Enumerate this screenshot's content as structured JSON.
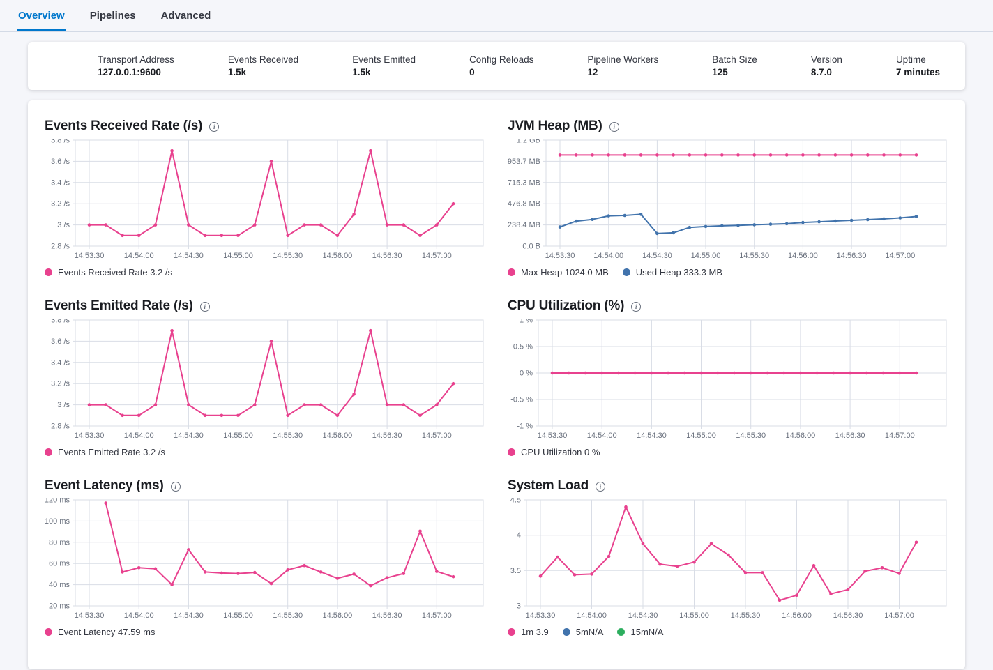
{
  "tabs": {
    "items": [
      {
        "label": "Overview",
        "active": true
      },
      {
        "label": "Pipelines",
        "active": false
      },
      {
        "label": "Advanced",
        "active": false
      }
    ]
  },
  "summary": {
    "items": [
      {
        "label": "Transport Address",
        "value": "127.0.0.1:9600"
      },
      {
        "label": "Events Received",
        "value": "1.5k"
      },
      {
        "label": "Events Emitted",
        "value": "1.5k"
      },
      {
        "label": "Config Reloads",
        "value": "0"
      },
      {
        "label": "Pipeline Workers",
        "value": "12"
      },
      {
        "label": "Batch Size",
        "value": "125"
      },
      {
        "label": "Version",
        "value": "8.7.0"
      },
      {
        "label": "Uptime",
        "value": "7 minutes"
      }
    ]
  },
  "colors": {
    "pink": "#e8418e",
    "blue": "#4173ac",
    "green": "#2cae5e",
    "accent_blue": "#0077cc",
    "gridline": "#d9dde6",
    "axis_text": "#69707d"
  },
  "icons": {
    "info": "i"
  },
  "chart_data": [
    {
      "type": "line",
      "title": "Events Received Rate (/s)",
      "x": [
        "14:53:30",
        "14:53:40",
        "14:53:50",
        "14:54:00",
        "14:54:10",
        "14:54:20",
        "14:54:30",
        "14:54:40",
        "14:54:50",
        "14:55:00",
        "14:55:10",
        "14:55:20",
        "14:55:30",
        "14:55:40",
        "14:55:50",
        "14:56:00",
        "14:56:10",
        "14:56:20",
        "14:56:30",
        "14:56:40",
        "14:56:50",
        "14:57:00",
        "14:57:10"
      ],
      "xticks": [
        "14:53:30",
        "14:54:00",
        "14:54:30",
        "14:55:00",
        "14:55:30",
        "14:56:00",
        "14:56:30",
        "14:57:00"
      ],
      "ylim": [
        2.8,
        3.8
      ],
      "yticks": [
        {
          "v": 2.8,
          "label": "2.8 /s"
        },
        {
          "v": 3.0,
          "label": "3 /s"
        },
        {
          "v": 3.2,
          "label": "3.2 /s"
        },
        {
          "v": 3.4,
          "label": "3.4 /s"
        },
        {
          "v": 3.6,
          "label": "3.6 /s"
        },
        {
          "v": 3.8,
          "label": "3.8 /s"
        }
      ],
      "grid": true,
      "legend_position": "bottom",
      "series": [
        {
          "name": "Events Received Rate",
          "color": "#e8418e",
          "values": [
            3.0,
            3.0,
            2.9,
            2.9,
            3.0,
            3.7,
            3.0,
            2.9,
            2.9,
            2.9,
            3.0,
            3.6,
            2.9,
            3.0,
            3.0,
            2.9,
            3.1,
            3.7,
            3.0,
            3.0,
            2.9,
            3.0,
            3.2
          ]
        }
      ],
      "legend": [
        {
          "label": "Events Received Rate 3.2 /s",
          "color": "#e8418e"
        }
      ]
    },
    {
      "type": "line",
      "title": "JVM Heap (MB)",
      "x": [
        "14:53:30",
        "14:53:40",
        "14:53:50",
        "14:54:00",
        "14:54:10",
        "14:54:20",
        "14:54:30",
        "14:54:40",
        "14:54:50",
        "14:55:00",
        "14:55:10",
        "14:55:20",
        "14:55:30",
        "14:55:40",
        "14:55:50",
        "14:56:00",
        "14:56:10",
        "14:56:20",
        "14:56:30",
        "14:56:40",
        "14:56:50",
        "14:57:00",
        "14:57:10"
      ],
      "xticks": [
        "14:53:30",
        "14:54:00",
        "14:54:30",
        "14:55:00",
        "14:55:30",
        "14:56:00",
        "14:56:30",
        "14:57:00"
      ],
      "ylim": [
        0,
        1192.1
      ],
      "yticks": [
        {
          "v": 0,
          "label": "0.0 B"
        },
        {
          "v": 238.4,
          "label": "238.4 MB"
        },
        {
          "v": 476.8,
          "label": "476.8 MB"
        },
        {
          "v": 715.3,
          "label": "715.3 MB"
        },
        {
          "v": 953.7,
          "label": "953.7 MB"
        },
        {
          "v": 1192.1,
          "label": "1.2 GB"
        }
      ],
      "grid": true,
      "legend_position": "bottom",
      "series": [
        {
          "name": "Max Heap",
          "color": "#e8418e",
          "values": [
            1024,
            1024,
            1024,
            1024,
            1024,
            1024,
            1024,
            1024,
            1024,
            1024,
            1024,
            1024,
            1024,
            1024,
            1024,
            1024,
            1024,
            1024,
            1024,
            1024,
            1024,
            1024,
            1024
          ]
        },
        {
          "name": "Used Heap",
          "color": "#4173ac",
          "values": [
            215,
            281,
            300,
            340,
            345,
            358,
            142,
            150,
            210,
            220,
            228,
            234,
            240,
            246,
            252,
            266,
            274,
            282,
            290,
            298,
            307,
            318,
            333
          ]
        }
      ],
      "legend": [
        {
          "label": "Max Heap 1024.0 MB",
          "color": "#e8418e"
        },
        {
          "label": "Used Heap 333.3 MB",
          "color": "#4173ac"
        }
      ]
    },
    {
      "type": "line",
      "title": "Events Emitted Rate (/s)",
      "x": [
        "14:53:30",
        "14:53:40",
        "14:53:50",
        "14:54:00",
        "14:54:10",
        "14:54:20",
        "14:54:30",
        "14:54:40",
        "14:54:50",
        "14:55:00",
        "14:55:10",
        "14:55:20",
        "14:55:30",
        "14:55:40",
        "14:55:50",
        "14:56:00",
        "14:56:10",
        "14:56:20",
        "14:56:30",
        "14:56:40",
        "14:56:50",
        "14:57:00",
        "14:57:10"
      ],
      "xticks": [
        "14:53:30",
        "14:54:00",
        "14:54:30",
        "14:55:00",
        "14:55:30",
        "14:56:00",
        "14:56:30",
        "14:57:00"
      ],
      "ylim": [
        2.8,
        3.8
      ],
      "yticks": [
        {
          "v": 2.8,
          "label": "2.8 /s"
        },
        {
          "v": 3.0,
          "label": "3 /s"
        },
        {
          "v": 3.2,
          "label": "3.2 /s"
        },
        {
          "v": 3.4,
          "label": "3.4 /s"
        },
        {
          "v": 3.6,
          "label": "3.6 /s"
        },
        {
          "v": 3.8,
          "label": "3.8 /s"
        }
      ],
      "grid": true,
      "legend_position": "bottom",
      "series": [
        {
          "name": "Events Emitted Rate",
          "color": "#e8418e",
          "values": [
            3.0,
            3.0,
            2.9,
            2.9,
            3.0,
            3.7,
            3.0,
            2.9,
            2.9,
            2.9,
            3.0,
            3.6,
            2.9,
            3.0,
            3.0,
            2.9,
            3.1,
            3.7,
            3.0,
            3.0,
            2.9,
            3.0,
            3.2
          ]
        }
      ],
      "legend": [
        {
          "label": "Events Emitted Rate 3.2 /s",
          "color": "#e8418e"
        }
      ]
    },
    {
      "type": "line",
      "title": "CPU Utilization (%)",
      "x": [
        "14:53:30",
        "14:53:40",
        "14:53:50",
        "14:54:00",
        "14:54:10",
        "14:54:20",
        "14:54:30",
        "14:54:40",
        "14:54:50",
        "14:55:00",
        "14:55:10",
        "14:55:20",
        "14:55:30",
        "14:55:40",
        "14:55:50",
        "14:56:00",
        "14:56:10",
        "14:56:20",
        "14:56:30",
        "14:56:40",
        "14:56:50",
        "14:57:00",
        "14:57:10"
      ],
      "xticks": [
        "14:53:30",
        "14:54:00",
        "14:54:30",
        "14:55:00",
        "14:55:30",
        "14:56:00",
        "14:56:30",
        "14:57:00"
      ],
      "ylim": [
        -1,
        1
      ],
      "yticks": [
        {
          "v": -1,
          "label": "-1 %"
        },
        {
          "v": -0.5,
          "label": "-0.5 %"
        },
        {
          "v": 0,
          "label": "0 %"
        },
        {
          "v": 0.5,
          "label": "0.5 %"
        },
        {
          "v": 1,
          "label": "1 %"
        }
      ],
      "grid": true,
      "legend_position": "bottom",
      "series": [
        {
          "name": "CPU Utilization",
          "color": "#e8418e",
          "values": [
            0,
            0,
            0,
            0,
            0,
            0,
            0,
            0,
            0,
            0,
            0,
            0,
            0,
            0,
            0,
            0,
            0,
            0,
            0,
            0,
            0,
            0,
            0
          ]
        }
      ],
      "legend": [
        {
          "label": "CPU Utilization 0 %",
          "color": "#e8418e"
        }
      ]
    },
    {
      "type": "line",
      "title": "Event Latency (ms)",
      "x": [
        "14:53:30",
        "14:53:40",
        "14:53:50",
        "14:54:00",
        "14:54:10",
        "14:54:20",
        "14:54:30",
        "14:54:40",
        "14:54:50",
        "14:55:00",
        "14:55:10",
        "14:55:20",
        "14:55:30",
        "14:55:40",
        "14:55:50",
        "14:56:00",
        "14:56:10",
        "14:56:20",
        "14:56:30",
        "14:56:40",
        "14:56:50",
        "14:57:00",
        "14:57:10"
      ],
      "xticks": [
        "14:53:30",
        "14:54:00",
        "14:54:30",
        "14:55:00",
        "14:55:30",
        "14:56:00",
        "14:56:30",
        "14:57:00"
      ],
      "ylim": [
        20,
        120
      ],
      "yticks": [
        {
          "v": 20,
          "label": "20 ms"
        },
        {
          "v": 40,
          "label": "40 ms"
        },
        {
          "v": 60,
          "label": "60 ms"
        },
        {
          "v": 80,
          "label": "80 ms"
        },
        {
          "v": 100,
          "label": "100 ms"
        },
        {
          "v": 120,
          "label": "120 ms"
        }
      ],
      "grid": true,
      "legend_position": "bottom",
      "series": [
        {
          "name": "Event Latency",
          "color": "#e8418e",
          "values": [
            null,
            117,
            52,
            56,
            55,
            40,
            73,
            52,
            51,
            50.5,
            51.5,
            41,
            54,
            58,
            52,
            46,
            50,
            39,
            46.5,
            50.5,
            90.5,
            52.5,
            47.5
          ]
        }
      ],
      "legend": [
        {
          "label": "Event Latency 47.59 ms",
          "color": "#e8418e"
        }
      ]
    },
    {
      "type": "line",
      "title": "System Load",
      "x": [
        "14:53:30",
        "14:53:40",
        "14:53:50",
        "14:54:00",
        "14:54:10",
        "14:54:20",
        "14:54:30",
        "14:54:40",
        "14:54:50",
        "14:55:00",
        "14:55:10",
        "14:55:20",
        "14:55:30",
        "14:55:40",
        "14:55:50",
        "14:56:00",
        "14:56:10",
        "14:56:20",
        "14:56:30",
        "14:56:40",
        "14:56:50",
        "14:57:00",
        "14:57:10"
      ],
      "xticks": [
        "14:53:30",
        "14:54:00",
        "14:54:30",
        "14:55:00",
        "14:55:30",
        "14:56:00",
        "14:56:30",
        "14:57:00"
      ],
      "ylim": [
        3,
        4.5
      ],
      "yticks": [
        {
          "v": 3,
          "label": "3"
        },
        {
          "v": 3.5,
          "label": "3.5"
        },
        {
          "v": 4,
          "label": "4"
        },
        {
          "v": 4.5,
          "label": "4.5"
        }
      ],
      "grid": true,
      "legend_position": "bottom",
      "series": [
        {
          "name": "1m",
          "color": "#e8418e",
          "values": [
            3.42,
            3.69,
            3.44,
            3.45,
            3.7,
            4.4,
            3.88,
            3.59,
            3.56,
            3.62,
            3.88,
            3.72,
            3.47,
            3.47,
            3.08,
            3.15,
            3.57,
            3.17,
            3.23,
            3.49,
            3.54,
            3.46,
            3.9
          ]
        }
      ],
      "legend": [
        {
          "label": "1m 3.9",
          "color": "#e8418e"
        },
        {
          "label": "5mN/A",
          "color": "#4173ac"
        },
        {
          "label": "15mN/A",
          "color": "#2cae5e"
        }
      ]
    }
  ]
}
